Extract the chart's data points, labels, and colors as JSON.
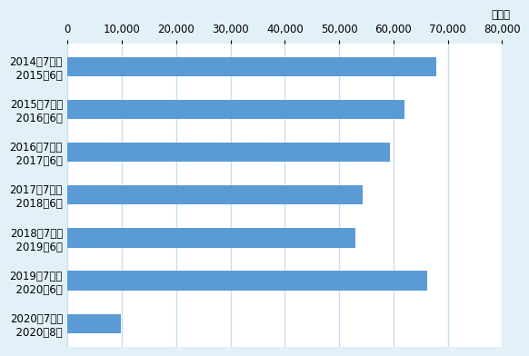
{
  "categories": [
    "2014年7月～\n2015年6月",
    "2015年7月～\n2016年6月",
    "2016年7月～\n2017年6月",
    "2017年7月～\n2018年6月",
    "2018年7月～\n2019年6月",
    "2019年7月～\n2020年6月",
    "2020年7月～\n2020年8月"
  ],
  "values": [
    67858,
    61947,
    59413,
    54258,
    52970,
    66275,
    9800
  ],
  "bar_color": "#5b9bd5",
  "background_color": "#e2f0f8",
  "plot_background": "#ffffff",
  "grid_color": "#c8dff0",
  "xlim": [
    0,
    80000
  ],
  "xticks": [
    0,
    10000,
    20000,
    30000,
    40000,
    50000,
    60000,
    70000,
    80000
  ],
  "unit_label": "（人）",
  "bar_height": 0.45,
  "tick_fontsize": 8.5,
  "label_fontsize": 8.5
}
